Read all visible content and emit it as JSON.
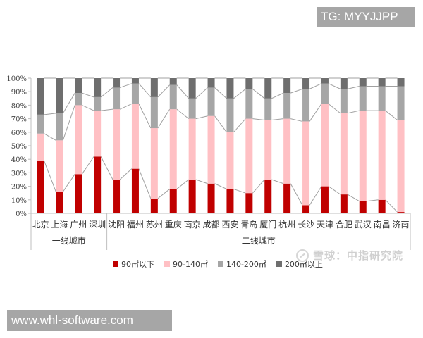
{
  "badges": {
    "tg": "TG: MYYJJPP",
    "url": "www.whl-software.com"
  },
  "watermark": "雪球：中指研究院",
  "legend": [
    {
      "label": "90㎡以下",
      "color": "#c00000"
    },
    {
      "label": "90-140㎡",
      "color": "#ffc0c4"
    },
    {
      "label": "140-200㎡",
      "color": "#a6a6a6"
    },
    {
      "label": "200㎡以上",
      "color": "#6e6e6e"
    }
  ],
  "chart_data": {
    "type": "bar",
    "stacked": true,
    "percent_stacked": true,
    "title": "",
    "xlabel": "",
    "ylabel": "",
    "ylim": [
      0,
      100
    ],
    "yticks": [
      "0%",
      "10%",
      "20%",
      "30%",
      "40%",
      "50%",
      "60%",
      "70%",
      "80%",
      "90%",
      "100%"
    ],
    "grid": false,
    "legend_position": "bottom",
    "series_lines": true,
    "categories": [
      "北京",
      "上海",
      "广州",
      "深圳",
      "沈阳",
      "福州",
      "苏州",
      "重庆",
      "南京",
      "成都",
      "西安",
      "青岛",
      "厦门",
      "杭州",
      "长沙",
      "天津",
      "合肥",
      "武汉",
      "南昌",
      "济南"
    ],
    "groups": [
      {
        "label": "一线城市",
        "start": 0,
        "end": 3
      },
      {
        "label": "二线城市",
        "start": 4,
        "end": 19
      }
    ],
    "series": [
      {
        "name": "90㎡以下",
        "color": "#c00000",
        "values": [
          39,
          16,
          29,
          42,
          25,
          33,
          11,
          18,
          25,
          22,
          18,
          15,
          25,
          22,
          6,
          20,
          14,
          9,
          10,
          1
        ]
      },
      {
        "name": "90-140㎡",
        "color": "#ffc0c4",
        "values": [
          20,
          38,
          51,
          34,
          52,
          48,
          52,
          59,
          45,
          50,
          42,
          55,
          44,
          48,
          62,
          61,
          60,
          67,
          66,
          68
        ]
      },
      {
        "name": "140-200㎡",
        "color": "#a6a6a6",
        "values": [
          14,
          20,
          9,
          10,
          16,
          15,
          23,
          18,
          15,
          21,
          25,
          22,
          16,
          19,
          24,
          15,
          18,
          18,
          18,
          25
        ]
      },
      {
        "name": "200㎡以上",
        "color": "#6e6e6e",
        "values": [
          27,
          26,
          11,
          14,
          7,
          4,
          14,
          5,
          15,
          7,
          15,
          8,
          15,
          11,
          8,
          4,
          8,
          6,
          6,
          6
        ]
      }
    ]
  }
}
